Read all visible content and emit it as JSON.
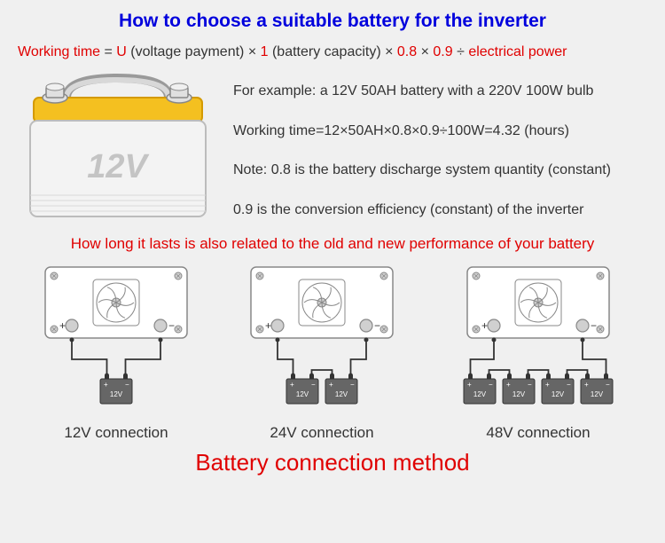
{
  "title": "How to choose a suitable battery for the inverter",
  "formula": {
    "lhs": "Working time",
    "eq": " = ",
    "u": "U",
    "u_note": " (voltage payment)",
    "mul1": " × ",
    "one": "1",
    "one_note": " (battery capacity)",
    "mul2": " × ",
    "c1": "0.8",
    "mul3": " × ",
    "c2": "0.9",
    "div": " ÷ ",
    "ep": "electrical power"
  },
  "battery_diagram": {
    "body_color": "#f3f3f3",
    "body_stroke": "#bcbcbc",
    "top_color": "#f4c020",
    "top_stroke": "#d49a00",
    "handle_color": "#d8d8d8",
    "handle_stroke": "#9a9a9a",
    "terminal_fill": "#e0e0e0",
    "terminal_stroke": "#888888",
    "label_text": "12V",
    "label_color": "#c4c4c4",
    "label_fontsize": 38
  },
  "example": {
    "line1": "For example: a 12V 50AH battery with a 220V 100W bulb",
    "line2": "Working time=12×50AH×0.8×0.9÷100W=4.32 (hours)",
    "line3": "Note: 0.8 is the battery discharge system quantity (constant)",
    "line4": "0.9 is the conversion efficiency (constant) of the inverter"
  },
  "note_red": "How long it lasts is also related to the old and new performance of your battery",
  "inverter_style": {
    "body_fill": "#ffffff",
    "body_stroke": "#888888",
    "screw_fill": "#d0d0d0",
    "fan_stroke": "#888888",
    "terminal_fill_pos": "#d0d0d0",
    "terminal_fill_neg": "#d0d0d0",
    "wire_color": "#333333",
    "batt_fill": "#666666",
    "batt_stroke": "#333333",
    "batt_label": "12V",
    "batt_label_color": "#ffffff"
  },
  "connections": [
    {
      "label": "12V connection",
      "batteries": 1
    },
    {
      "label": "24V connection",
      "batteries": 2
    },
    {
      "label": "48V connection",
      "batteries": 4
    }
  ],
  "bottom_title": "Battery connection method"
}
